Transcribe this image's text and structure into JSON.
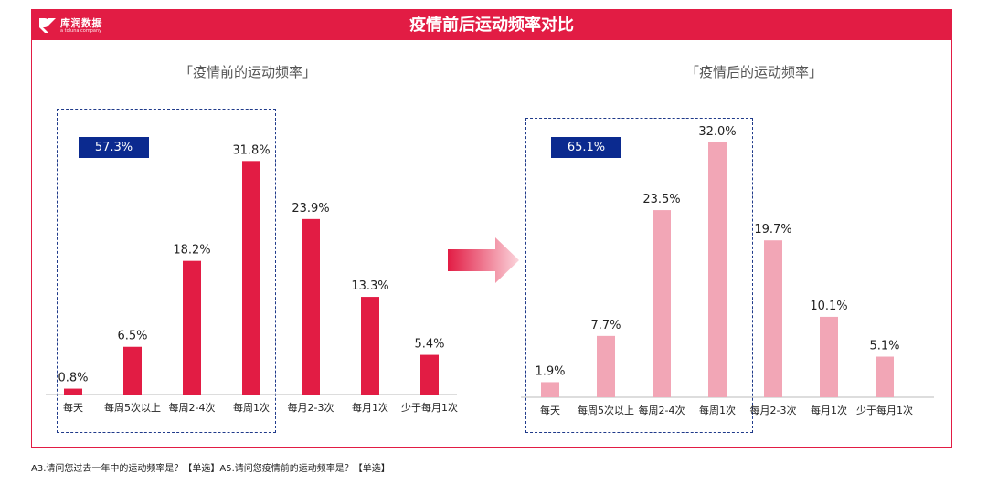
{
  "brand": {
    "name": "库润数据",
    "sub": "a tolunа company"
  },
  "header": {
    "title": "疫情前后运动频率对比"
  },
  "colors": {
    "accent": "#e21c44",
    "before_bar": "#e21c44",
    "after_bar": "#f2a6b6",
    "badge": "#0b2a8f"
  },
  "panels": [
    {
      "title": "「疫情前的运动频率」",
      "share_label": "57.3%"
    },
    {
      "title": "「疫情后的运动频率」",
      "share_label": "65.1%"
    }
  ],
  "chart_data": [
    {
      "type": "bar",
      "title": "「疫情前的运动频率」",
      "categories": [
        "每天",
        "每周5次以上",
        "每周2-4次",
        "每周1次",
        "每月2-3次",
        "每月1次",
        "少于每月1次"
      ],
      "values": [
        0.8,
        6.5,
        18.2,
        31.8,
        23.9,
        13.3,
        5.4
      ],
      "value_labels": [
        "0.8%",
        "6.5%",
        "18.2%",
        "31.8%",
        "23.9%",
        "13.3%",
        "5.4%"
      ],
      "grouped_share": "57.3%",
      "ylim": [
        0,
        35
      ]
    },
    {
      "type": "bar",
      "title": "「疫情后的运动频率」",
      "categories": [
        "每天",
        "每周5次以上",
        "每周2-4次",
        "每周1次",
        "每月2-3次",
        "每月1次",
        "少于每月1次"
      ],
      "values": [
        1.9,
        7.7,
        23.5,
        32.0,
        19.7,
        10.1,
        5.1
      ],
      "value_labels": [
        "1.9%",
        "7.7%",
        "23.5%",
        "32.0%",
        "19.7%",
        "10.1%",
        "5.1%"
      ],
      "grouped_share": "65.1%",
      "ylim": [
        0,
        35
      ]
    }
  ],
  "footnote": "A3.请问您过去一年中的运动频率是？【单选】A5.请问您疫情前的运动频率是？【单选】"
}
